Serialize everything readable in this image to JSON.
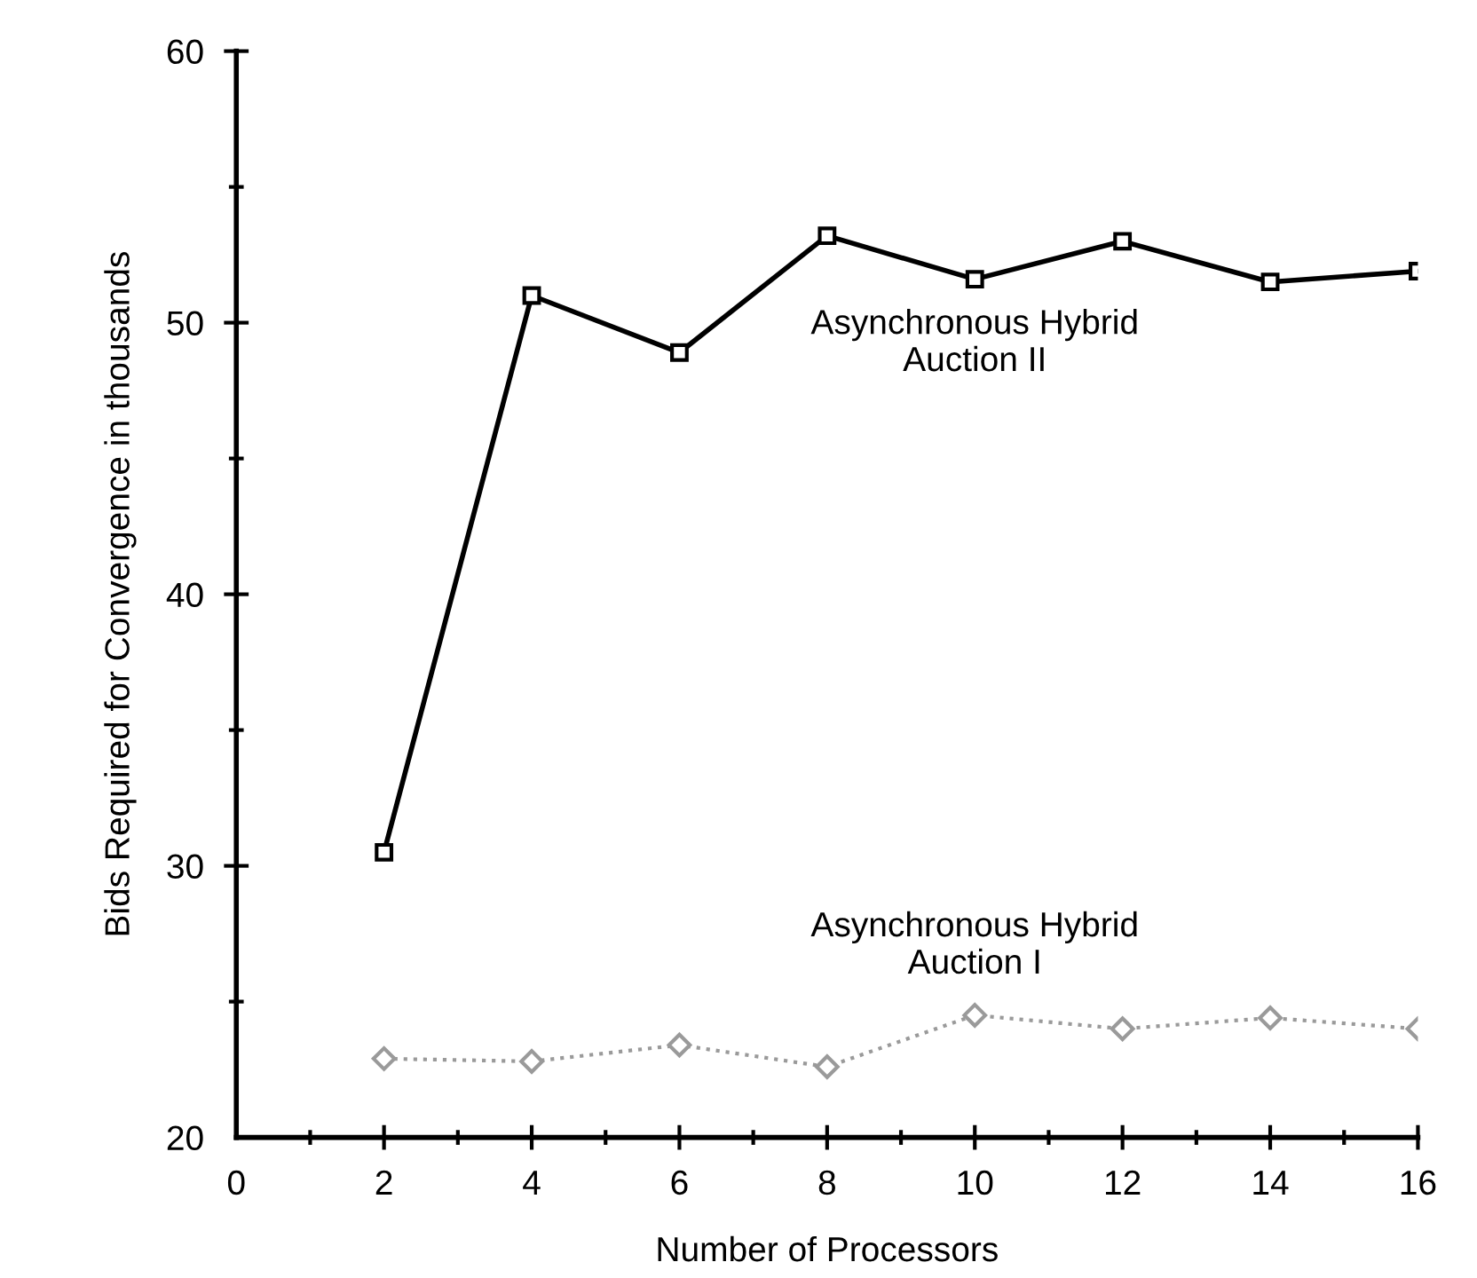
{
  "chart_data": {
    "type": "line",
    "xlabel": "Number of Processors",
    "ylabel": "Bids Required for Convergence in thousands",
    "x": [
      2,
      4,
      6,
      8,
      10,
      12,
      14,
      16
    ],
    "series": [
      {
        "name": "Asynchronous Hybrid\nAuction II",
        "color": "#000000",
        "marker": "square",
        "line_style": "solid",
        "values": [
          30.5,
          51.0,
          48.9,
          53.2,
          51.6,
          53.0,
          51.5,
          51.9
        ]
      },
      {
        "name": "Asynchronous Hybrid\nAuction I",
        "color": "#9a9a9a",
        "marker": "diamond",
        "line_style": "dotted",
        "values": [
          22.9,
          22.8,
          23.4,
          22.6,
          24.5,
          24.0,
          24.4,
          24.0
        ]
      }
    ],
    "xlim": [
      0,
      16
    ],
    "xticks": [
      0,
      2,
      4,
      6,
      8,
      10,
      12,
      14,
      16
    ],
    "ylim": [
      20,
      60
    ],
    "yticks": [
      20,
      30,
      40,
      50,
      60
    ],
    "grid": false,
    "legend": false
  }
}
